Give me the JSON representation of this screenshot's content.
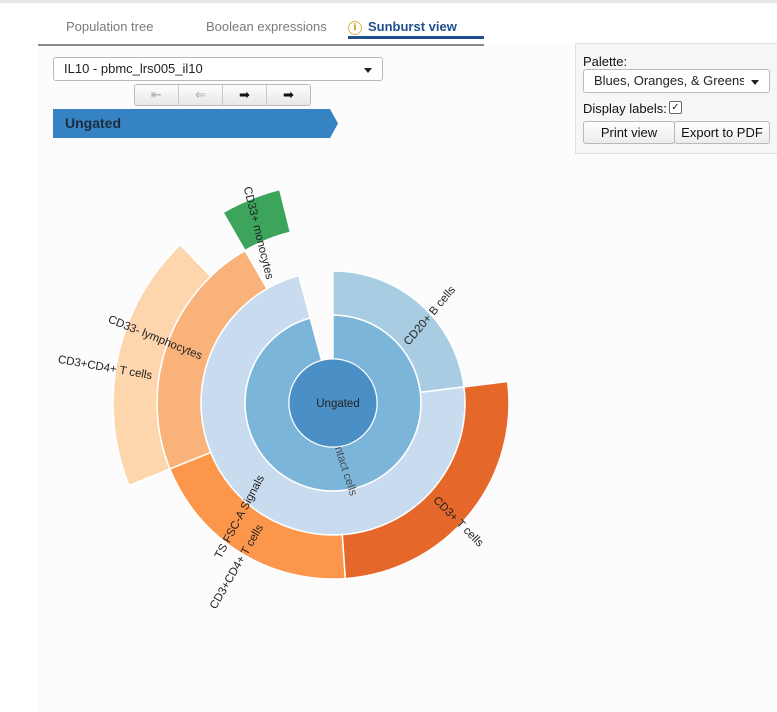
{
  "tabs": [
    {
      "label": "Population tree"
    },
    {
      "label": "Boolean expressions"
    },
    {
      "label": "Sunburst view"
    }
  ],
  "sample_select": {
    "value": "IL10 - pbmc_lrs005_il10"
  },
  "nav_buttons": [
    {
      "icon": "first-icon",
      "glyph": "⇤"
    },
    {
      "icon": "back-icon",
      "glyph": "⇐"
    },
    {
      "icon": "forward-icon",
      "glyph": "➡"
    },
    {
      "icon": "last-icon",
      "glyph": "➡"
    }
  ],
  "breadcrumb": {
    "label": "Ungated"
  },
  "sidebar": {
    "palette_label": "Palette:",
    "palette_value": "Blues, Oranges, & Greens",
    "display_labels_label": "Display labels:",
    "display_labels_checked": true,
    "print_label": "Print view",
    "export_label": "Export to PDF"
  },
  "sunburst": {
    "root_label": "Ungated",
    "colors": {
      "root": "#4a8fc5",
      "intact": "#7cb5da",
      "tsfsc": "#c9dcef",
      "cd20b": "#a8cde3",
      "cd3t": "#e6672a",
      "cd33l": "#f9b27a",
      "cd3cd4_outer": "#fed6ad",
      "cd3cd4_inner": "#fc964a",
      "mono": "#3da45c"
    },
    "segment_labels": {
      "intact": "intact cells",
      "tsfsc": "TS FSC-A Signals",
      "cd20b": "CD20+ B cells",
      "cd3t": "CD3+ T cells",
      "cd33l": "CD33- lymphocytes",
      "cd3cd4_outer": "CD3+CD4+ T cells",
      "cd3cd4_inner": "CD3+CD4+ T cells",
      "mono": "CD33+ monocytes"
    }
  }
}
